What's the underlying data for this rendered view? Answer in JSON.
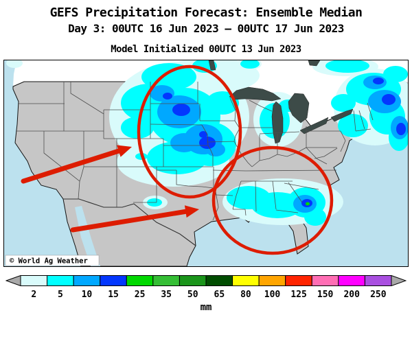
{
  "header": {
    "title": "GEFS Precipitation Forecast: Ensemble Median",
    "valid_line": "Day 3: 00UTC 16 Jun 2023 — 00UTC 17 Jun 2023",
    "init_line": "Model Initialized 00UTC 13 Jun 2023"
  },
  "map": {
    "watermark": "© World Ag Weather",
    "colors": {
      "ocean": "#BCE1EE",
      "canada_land": "#FFFFFF",
      "us_land": "#C6C6C6",
      "lakes": "#3D4B48",
      "state_border": "#4E4E4E",
      "coast_border": "#111111",
      "mexico_border": "#333333",
      "precip_2": "#D9FBFB",
      "precip_5": "#00FFFF",
      "precip_10": "#00A8FF",
      "precip_15": "#0337FE",
      "precip_25": "#00D800",
      "annotation_red": "#DD1C00",
      "watermark_bg": "#FFFFFF"
    }
  },
  "chart_data": {
    "type": "heatmap",
    "title": "GEFS Precipitation Forecast: Ensemble Median",
    "subtitle": "Day 3: 00UTC 16 Jun 2023 — 00UTC 17 Jun 2023",
    "annotation": "Model Initialized 00UTC 13 Jun 2023",
    "units": "mm",
    "legend_position": "bottom",
    "legend_ticks": [
      2,
      5,
      10,
      15,
      25,
      35,
      50,
      65,
      80,
      100,
      125,
      150,
      200,
      250
    ],
    "legend_colors": [
      "#D9FBFB",
      "#00FFFF",
      "#00A8FF",
      "#0337FE",
      "#00D800",
      "#35BE35",
      "#1B951B",
      "#014D01",
      "#FFFF00",
      "#FFA500",
      "#FF2400",
      "#FF6EB4",
      "#FF00FF",
      "#A94FE0"
    ],
    "regions": [
      {
        "area": "Northern Plains / Upper Midwest (MT, WY, ND, SD, NE, MN, IA, KS, CO)",
        "precip_mm": "2-25",
        "red_circle": true,
        "red_arrow": true
      },
      {
        "area": "Gulf Coast / Southeast (MS, AL, GA, SC, north FL)",
        "precip_mm": "2-25",
        "red_circle": true,
        "red_arrow": true
      },
      {
        "area": "Northeast (NY, New England, Mid-Atlantic)",
        "precip_mm": "2-25",
        "red_circle": false,
        "red_arrow": false
      },
      {
        "area": "Great Lakes / Wisconsin / Michigan",
        "precip_mm": "2-10",
        "red_circle": false,
        "red_arrow": false
      },
      {
        "area": "Western US, Texas, Ohio Valley, central FL",
        "precip_mm": "0",
        "red_circle": false,
        "red_arrow": false
      }
    ]
  },
  "colorbar": {
    "ticks": [
      "2",
      "5",
      "10",
      "15",
      "25",
      "35",
      "50",
      "65",
      "80",
      "100",
      "125",
      "150",
      "200",
      "250"
    ],
    "cell_colors": [
      "#D9FBFB",
      "#00FFFF",
      "#00A8FF",
      "#0337FE",
      "#00D800",
      "#35BE35",
      "#1B951B",
      "#014D01",
      "#FFFF00",
      "#FFA500",
      "#FF2400",
      "#FF6EB4",
      "#FF00FF",
      "#A94FE0"
    ],
    "end_color": "#A9A9A9",
    "unit_label": "mm"
  }
}
